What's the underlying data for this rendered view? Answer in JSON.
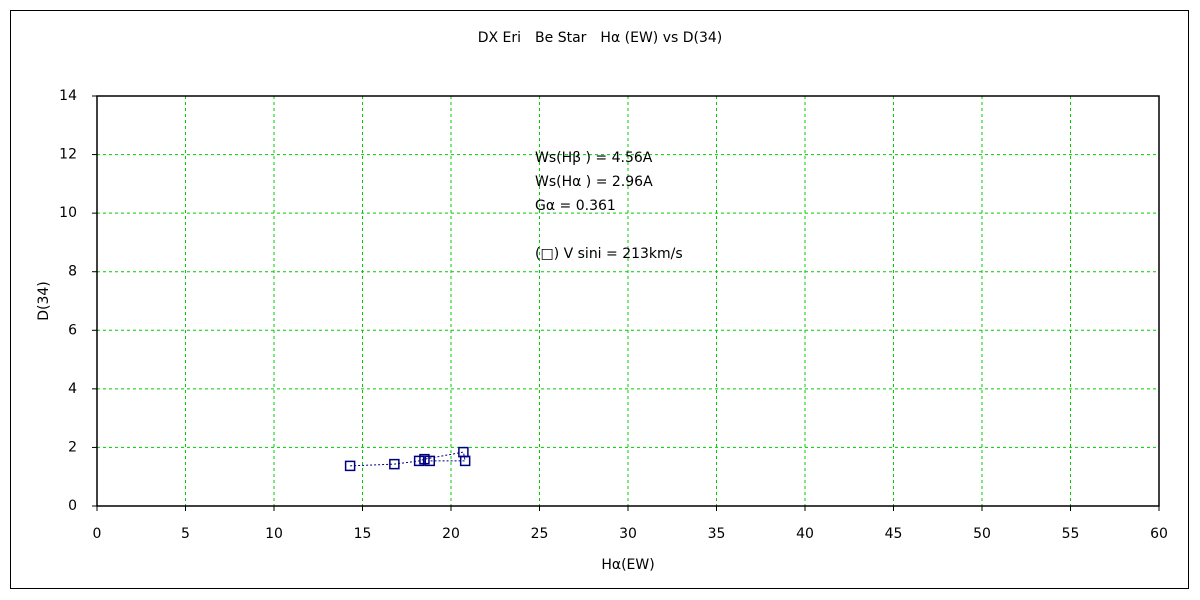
{
  "chart_data": {
    "type": "scatter",
    "title": "DX Eri　Be Star　Hα (EW) vs D(34)",
    "x_label": "Hα(EW)",
    "y_label": "D(34)",
    "annotations": [
      "Ws(Hβ ) = 4.56A",
      "Ws(Hα ) = 2.96A",
      "Gα = 0.361",
      "(□) V sini = 213km/s"
    ],
    "x": [
      14.3,
      16.8,
      18.2,
      18.5,
      20.7,
      20.8,
      18.8
    ],
    "values": [
      1.37,
      1.43,
      1.54,
      1.6,
      1.84,
      1.54,
      1.54
    ],
    "color": "#000080",
    "xlim": [
      0,
      60
    ],
    "xticks": [
      0,
      5,
      10,
      15,
      20,
      25,
      30,
      35,
      40,
      45,
      50,
      55,
      60
    ],
    "ylim": [
      0,
      14
    ],
    "yticks": [
      0,
      2,
      4,
      6,
      8,
      10,
      12,
      14
    ],
    "grid": true
  }
}
